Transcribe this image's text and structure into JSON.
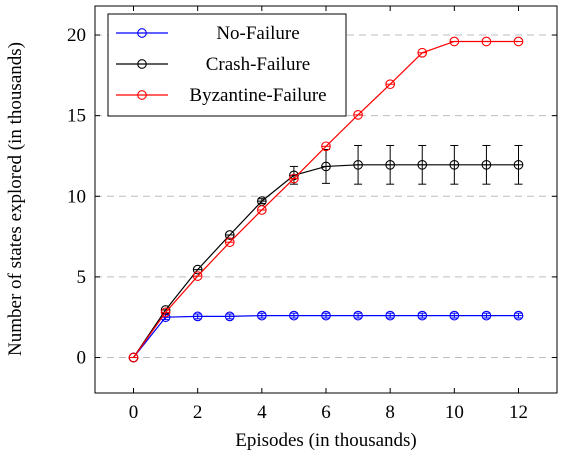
{
  "chart_data": {
    "type": "line",
    "title": "",
    "xlabel": "Episodes (in thousands)",
    "ylabel": "Number of states explored (in thousands)",
    "xlim": [
      -1.2,
      13.2
    ],
    "ylim": [
      -2.2,
      21.8
    ],
    "xticks": [
      0,
      2,
      4,
      6,
      8,
      10,
      12
    ],
    "yticks": [
      0,
      5,
      10,
      15,
      20
    ],
    "grid": {
      "x": false,
      "y": true,
      "style": "dashed"
    },
    "legend_position": "top-left",
    "x": [
      0,
      1,
      2,
      3,
      4,
      5,
      6,
      7,
      8,
      9,
      10,
      11,
      12
    ],
    "series": [
      {
        "name": "No-Failure",
        "color": "#0000ff",
        "marker": "circle",
        "values": [
          0,
          2.5,
          2.55,
          2.55,
          2.6,
          2.6,
          2.6,
          2.6,
          2.6,
          2.6,
          2.6,
          2.6,
          2.6
        ],
        "error": [
          0,
          0.15,
          0.15,
          0.15,
          0.15,
          0.15,
          0.15,
          0.15,
          0.15,
          0.15,
          0.15,
          0.15,
          0.15
        ]
      },
      {
        "name": "Crash-Failure",
        "color": "#000000",
        "marker": "circle",
        "values": [
          0,
          2.95,
          5.45,
          7.6,
          9.7,
          11.3,
          11.85,
          11.95,
          11.95,
          11.95,
          11.95,
          11.95,
          11.95
        ],
        "error": [
          0,
          0.1,
          0.1,
          0.1,
          0.15,
          0.55,
          1.05,
          1.2,
          1.2,
          1.2,
          1.2,
          1.2,
          1.2
        ]
      },
      {
        "name": "Byzantine-Failure",
        "color": "#ff0000",
        "marker": "circle",
        "values": [
          0,
          2.8,
          5.05,
          7.15,
          9.15,
          11.1,
          13.1,
          15.05,
          16.95,
          18.9,
          19.6,
          19.6,
          19.6
        ],
        "error": [
          0,
          0,
          0,
          0,
          0,
          0,
          0,
          0,
          0,
          0,
          0,
          0,
          0
        ]
      }
    ]
  }
}
